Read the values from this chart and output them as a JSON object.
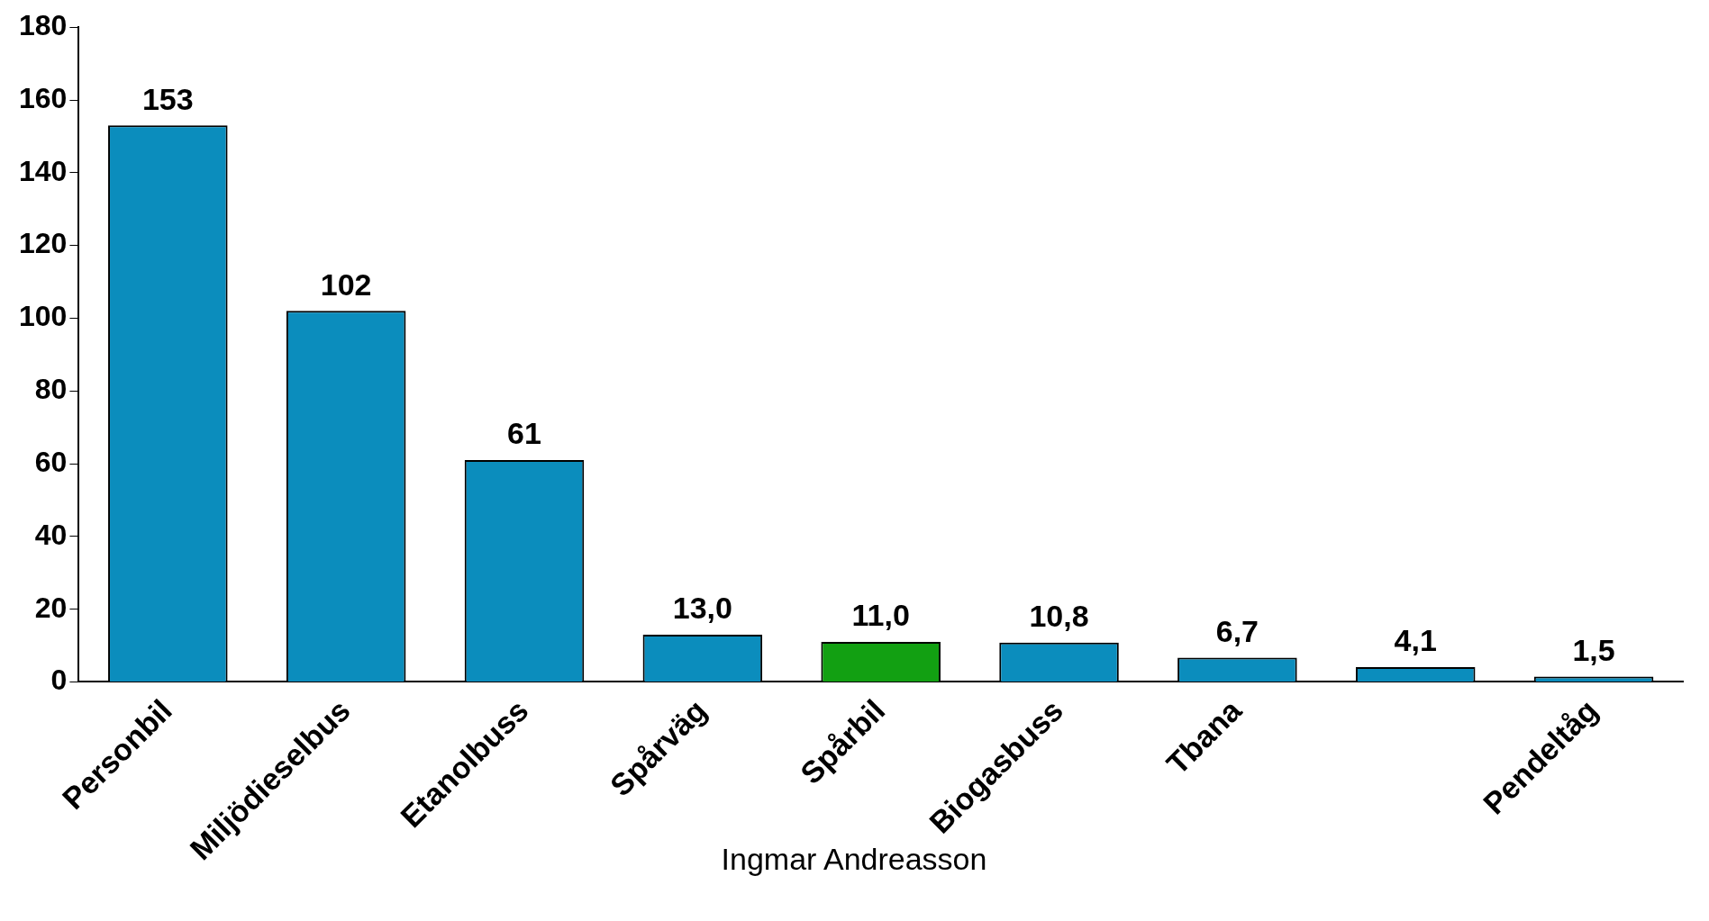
{
  "chart_data": {
    "type": "bar",
    "categories": [
      "Personbil",
      "Miljödieselbus",
      "Etanolbuss",
      "Spårväg",
      "Spårbil",
      "Biogasbuss",
      "Tbana",
      null,
      "Pendeltåg"
    ],
    "values": [
      153,
      102,
      61,
      13.0,
      11.0,
      10.8,
      6.7,
      4.1,
      1.5
    ],
    "value_labels": [
      "153",
      "102",
      "61",
      "13,0",
      "11,0",
      "10,8",
      "6,7",
      "4,1",
      "1,5"
    ],
    "colors": [
      "#0b8dbd",
      "#0b8dbd",
      "#0b8dbd",
      "#0b8dbd",
      "#12a012",
      "#0b8dbd",
      "#0b8dbd",
      "#0b8dbd",
      "#0b8dbd"
    ],
    "ylim": [
      0,
      180
    ],
    "yticks": [
      0,
      20,
      40,
      60,
      80,
      100,
      120,
      140,
      160,
      180
    ],
    "grid": false,
    "legend": false,
    "annotations": [
      "Ingmar Andreasson"
    ]
  }
}
